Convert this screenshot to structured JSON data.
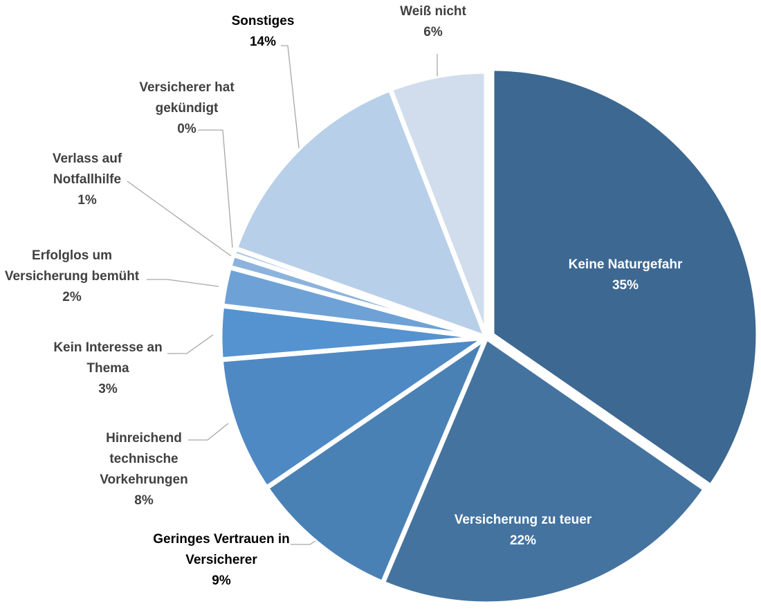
{
  "chart_data": {
    "type": "pie",
    "title": "",
    "start_angle_deg": 0,
    "direction": "clockwise",
    "slices": [
      {
        "lines": [
          "Keine Naturgefahr"
        ],
        "pct": "35%",
        "value": 35.4,
        "color": "#3d6891",
        "label_color": "#ffffff",
        "label_inside": true,
        "exploded": true
      },
      {
        "lines": [
          "Versicherung zu teuer"
        ],
        "pct": "22%",
        "value": 22.2,
        "color": "#44739f",
        "label_color": "#ffffff",
        "label_inside": true,
        "exploded": false
      },
      {
        "lines": [
          "Geringes Vertrauen in",
          "Versicherer"
        ],
        "pct": "9%",
        "value": 9.3,
        "color": "#4a81b5",
        "label_color": "#000000",
        "label_inside": false,
        "exploded": false
      },
      {
        "lines": [
          "Hinreichend",
          "technische",
          "Vorkehrungen"
        ],
        "pct": "8%",
        "value": 8.4,
        "color": "#4f89c4",
        "label_color": "#404040",
        "label_inside": false,
        "exploded": false
      },
      {
        "lines": [
          "Kein Interesse an",
          "Thema"
        ],
        "pct": "3%",
        "value": 3.3,
        "color": "#5493cf",
        "label_color": "#404040",
        "label_inside": false,
        "exploded": false
      },
      {
        "lines": [
          "Erfolglos um",
          "Versicherung bemüht"
        ],
        "pct": "2%",
        "value": 2.4,
        "color": "#6ea2d6",
        "label_color": "#404040",
        "label_inside": false,
        "exploded": false
      },
      {
        "lines": [
          "Verlass auf",
          "Notfallhilfe"
        ],
        "pct": "1%",
        "value": 0.8,
        "color": "#8cb3dd",
        "label_color": "#404040",
        "label_inside": false,
        "exploded": false
      },
      {
        "lines": [
          "Versicherer hat",
          "gekündigt"
        ],
        "pct": "0%",
        "value": 0.4,
        "color": "#a9c5e5",
        "label_color": "#404040",
        "label_inside": false,
        "exploded": false
      },
      {
        "lines": [
          "Sonstiges"
        ],
        "pct": "14%",
        "value": 14.0,
        "color": "#b8cfe9",
        "label_color": "#000000",
        "label_inside": false,
        "exploded": false
      },
      {
        "lines": [
          "Weiß nicht"
        ],
        "pct": "6%",
        "value": 6.0,
        "color": "#d1dded",
        "label_color": "#404040",
        "label_inside": false,
        "exploded": false
      }
    ]
  }
}
